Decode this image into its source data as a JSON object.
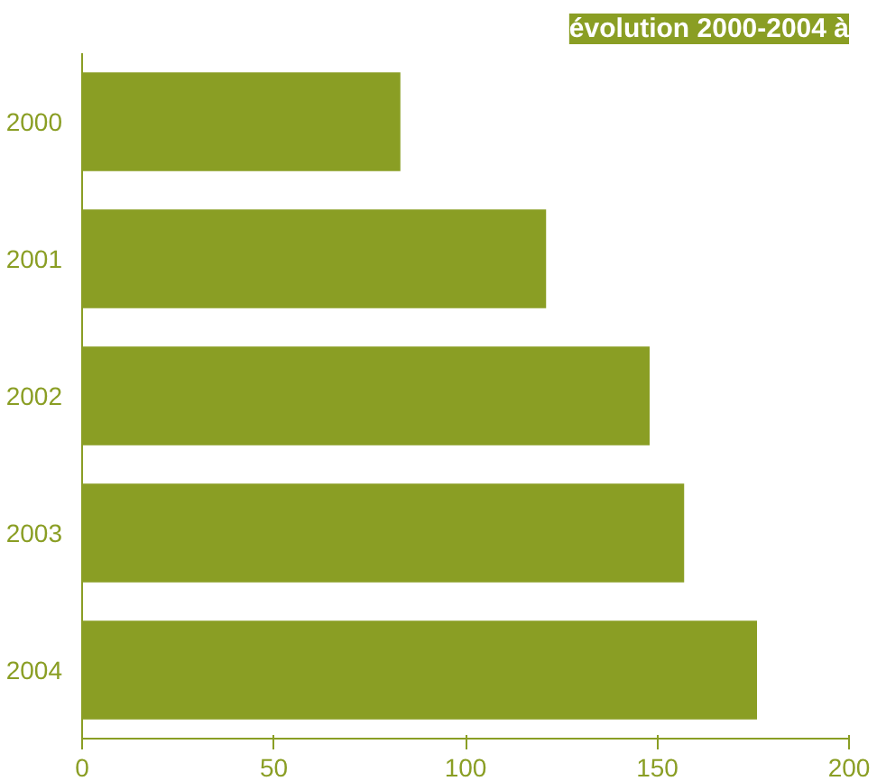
{
  "chart_data": {
    "type": "bar",
    "orientation": "horizontal",
    "title": "évolution 2000-2004 à",
    "categories": [
      "2000",
      "2001",
      "2002",
      "2003",
      "2004"
    ],
    "values": [
      83,
      121,
      148,
      157,
      176
    ],
    "color": "#8a9e24",
    "xlim": [
      0,
      200
    ],
    "xticks": [
      0,
      50,
      100,
      150,
      200
    ],
    "grid": false
  }
}
